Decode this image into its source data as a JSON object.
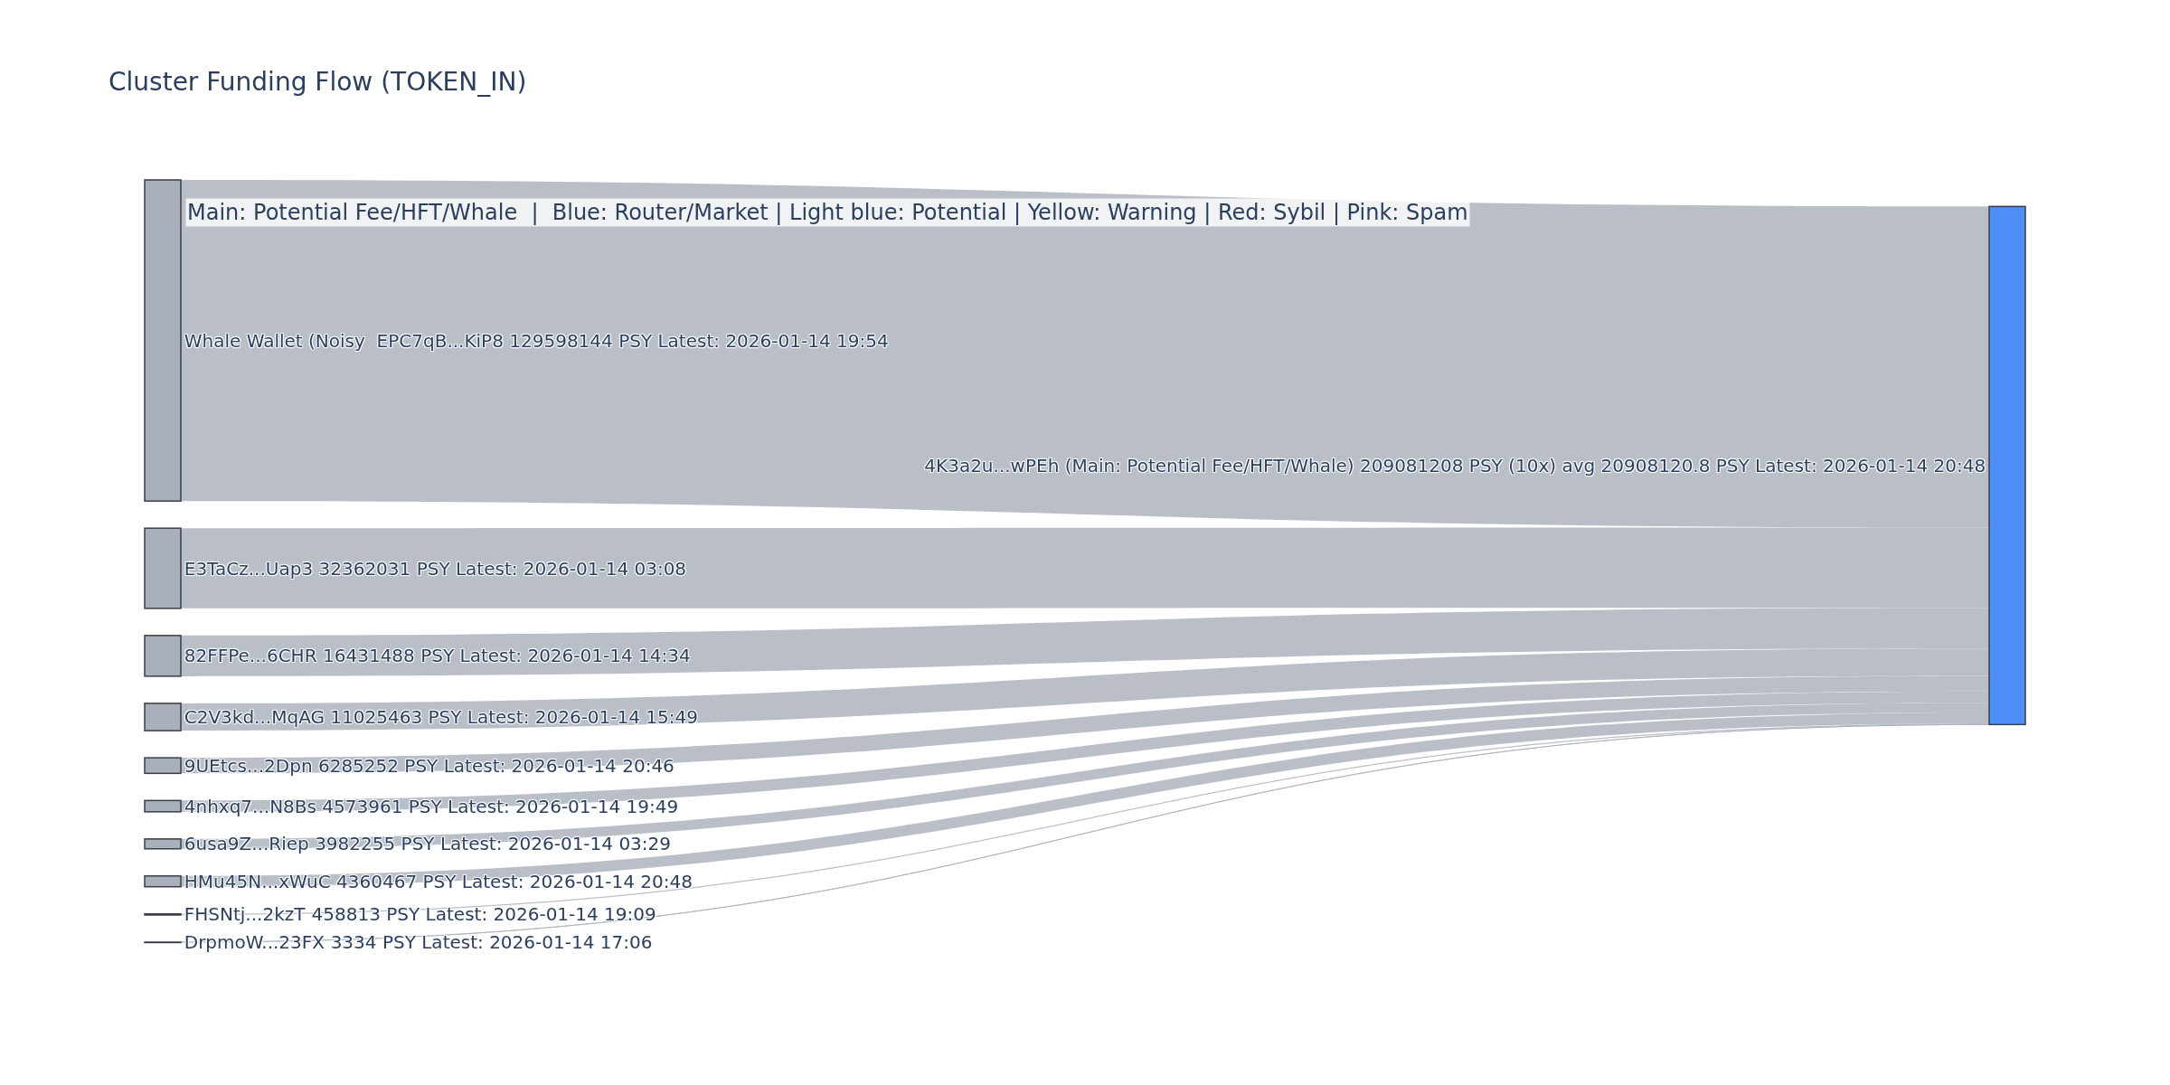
{
  "chart_data": {
    "type": "other",
    "title": "Cluster Funding Flow (TOKEN_IN)",
    "annotations": [
      "Main: Potential Fee/HFT/Whale  |  Blue: Router/Market | Light blue: Potential | Yellow: Warning | Red: Sybil | Pink: Spam"
    ],
    "categories": [
      "Whale Wallet (Noisy  EPC7qB...KiP8",
      "E3TaCz...Uap3",
      "82FFPe...6CHR",
      "C2V3kd...MqAG",
      "9UEtcs...2Dpn",
      "4nhxq7...N8Bs",
      "6usa9Z...Riep",
      "HMu45N...xWuC",
      "FHSNtj...2kzT",
      "DrpmoW...23FX",
      "4K3a2u...wPEh (Main: Potential Fee/HFT/Whale)"
    ],
    "values": [
      129598144,
      32362031,
      16431488,
      11025463,
      6285252,
      4573961,
      3982255,
      4360467,
      458813,
      3334,
      209081208
    ],
    "value_labels": [
      "129598144 PSY Latest: 2026-01-14 19:54",
      "32362031 PSY Latest: 2026-01-14 03:08",
      "16431488 PSY Latest: 2026-01-14 14:34",
      "11025463 PSY Latest: 2026-01-14 15:49",
      "6285252 PSY Latest: 2026-01-14 20:46",
      "4573961 PSY Latest: 2026-01-14 19:49",
      "3982255 PSY Latest: 2026-01-14 03:29",
      "4360467 PSY Latest: 2026-01-14 20:48",
      "458813 PSY Latest: 2026-01-14 19:09",
      "3334 PSY Latest: 2026-01-14 17:06",
      "209081208 PSY (10x) avg 20908120.8 PSY Latest: 2026-01-14 20:48"
    ],
    "colors": [
      "#aab0bb",
      "#aab0bb",
      "#aab0bb",
      "#aab0bb",
      "#aab0bb",
      "#aab0bb",
      "#aab0bb",
      "#aab0bb",
      "#aab0bb",
      "#aab0bb",
      "#4f8ef7"
    ]
  }
}
